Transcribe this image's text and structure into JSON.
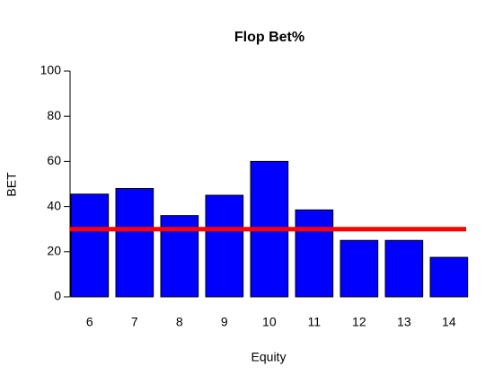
{
  "chart_data": {
    "type": "bar",
    "title": "Flop Bet%",
    "xlabel": "Equity",
    "ylabel": "BET",
    "categories": [
      6,
      7,
      8,
      9,
      10,
      11,
      12,
      13,
      14
    ],
    "values": [
      45.5,
      48,
      36,
      45,
      60,
      38.5,
      25,
      25,
      17.5
    ],
    "color": "#0000ff",
    "hline": {
      "value": 30,
      "color": "#ff0000"
    },
    "ylim": [
      0,
      100
    ],
    "yticks": [
      0,
      20,
      40,
      60,
      80,
      100
    ]
  }
}
